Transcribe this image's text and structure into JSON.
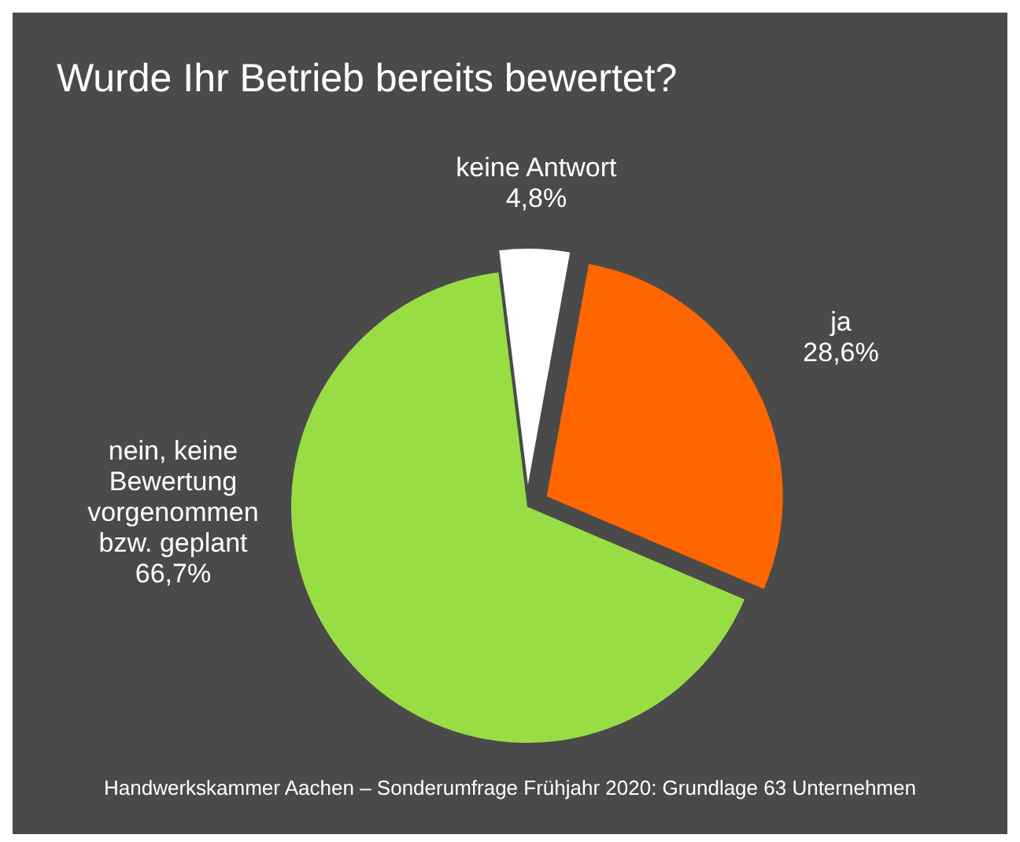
{
  "chart_data": {
    "type": "pie",
    "title": "Wurde Ihr Betrieb bereits bewertet?",
    "categories": [
      "keine Antwort",
      "ja",
      "nein, keine Bewertung vorgenommen bzw. geplant"
    ],
    "values": [
      4.8,
      28.6,
      66.7
    ],
    "colors": [
      "#ffffff",
      "#ff6600",
      "#99dd44"
    ],
    "value_labels": [
      "4,8%",
      "28,6%",
      "66,7%"
    ],
    "annotations": [
      "Handwerkskammer Aachen – Sonderumfrage Frühjahr 2020: Grundlage 63 Unternehmen"
    ]
  }
}
